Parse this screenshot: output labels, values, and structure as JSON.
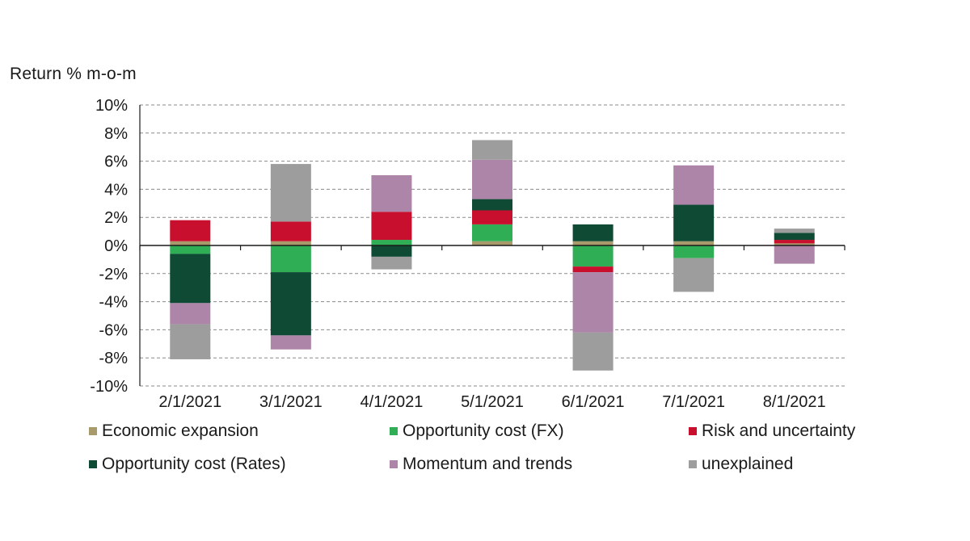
{
  "chart_data": {
    "type": "bar",
    "stacked": true,
    "title": "",
    "ylabel": "Return % m-o-m",
    "xlabel": "",
    "ylim": [
      -10,
      10
    ],
    "yticks": [
      10,
      8,
      6,
      4,
      2,
      0,
      -2,
      -4,
      -6,
      -8,
      -10
    ],
    "ytick_labels": [
      "10%",
      "8%",
      "6%",
      "4%",
      "2%",
      "0%",
      "-2%",
      "-4%",
      "-6%",
      "-8%",
      "-10%"
    ],
    "grid": "horizontal-dashed",
    "legend_position": "bottom",
    "categories": [
      "2/1/2021",
      "3/1/2021",
      "4/1/2021",
      "5/1/2021",
      "6/1/2021",
      "7/1/2021",
      "8/1/2021"
    ],
    "series": [
      {
        "name": "Economic expansion",
        "color": "#a89a6a",
        "values": [
          0.3,
          0.3,
          0.0,
          0.3,
          0.3,
          0.3,
          0.15
        ]
      },
      {
        "name": "Opportunity cost (FX)",
        "color": "#2fae55",
        "values": [
          -0.6,
          -1.9,
          0.4,
          1.2,
          -1.5,
          -0.9,
          0.0
        ]
      },
      {
        "name": "Risk and uncertainty",
        "color": "#c8102e",
        "values": [
          1.5,
          1.4,
          2.0,
          1.0,
          -0.4,
          0.0,
          0.25
        ]
      },
      {
        "name": "Opportunity cost (Rates)",
        "color": "#0f4a34",
        "values": [
          -3.5,
          -4.5,
          -0.8,
          0.8,
          1.2,
          2.6,
          0.5
        ]
      },
      {
        "name": "Momentum and trends",
        "color": "#ad85a9",
        "values": [
          -1.5,
          -1.0,
          2.6,
          2.8,
          -4.3,
          2.8,
          -1.3
        ]
      },
      {
        "name": "unexplained",
        "color": "#9d9d9d",
        "values": [
          -2.5,
          4.1,
          -0.9,
          1.4,
          -2.7,
          -2.4,
          0.3
        ]
      }
    ]
  }
}
